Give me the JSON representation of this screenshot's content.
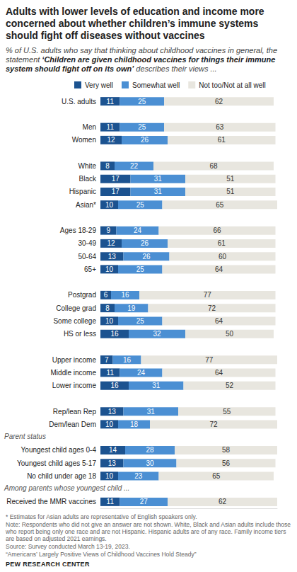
{
  "chart_data": {
    "type": "bar",
    "orientation": "horizontal",
    "stacked": true,
    "data_labels": true,
    "tick_labels": "y",
    "grid": false,
    "legend": "top",
    "title": "Adults with lower levels of education and income more concerned about whether children’s immune systems should fight off diseases without vaccines",
    "subtitle": "% of U.S. adults who say that thinking about childhood vaccines in general, the statement ‘Children are given childhood vaccines for things their immune system should fight off on its own’ describes their views ...",
    "categories": [
      "U.S. adults",
      null,
      "Men",
      "Women",
      null,
      "White",
      "Black",
      "Hispanic",
      "Asian*",
      null,
      "Ages 18-29",
      "30-49",
      "50-64",
      "65+",
      null,
      "Postgrad",
      "College grad",
      "Some college",
      "HS or less",
      null,
      "Upper income",
      "Middle income",
      "Lower income",
      null,
      "Rep/lean Rep",
      "Dem/lean Dem",
      "Parent status",
      "Youngest child ages 0-4",
      "Youngest child ages 5-17",
      "No child under age 18",
      "Among parents whose youngest child ...",
      "Received the MMR vaccines"
    ],
    "series": [
      {
        "name": "Very well",
        "color": "#1c5390",
        "values": [
          11,
          null,
          11,
          12,
          null,
          8,
          17,
          17,
          10,
          null,
          9,
          12,
          13,
          10,
          null,
          6,
          8,
          10,
          16,
          null,
          7,
          11,
          16,
          null,
          13,
          10,
          null,
          14,
          13,
          10,
          null,
          11
        ]
      },
      {
        "name": "Somewhat well",
        "color": "#4b8fd3",
        "values": [
          25,
          null,
          25,
          26,
          null,
          22,
          31,
          31,
          25,
          null,
          24,
          26,
          26,
          25,
          null,
          16,
          19,
          25,
          32,
          null,
          16,
          24,
          31,
          null,
          31,
          18,
          null,
          28,
          30,
          23,
          null,
          27
        ]
      },
      {
        "name": "Not too/Not at all well",
        "color": "#e8e6df",
        "values": [
          62,
          null,
          63,
          61,
          null,
          68,
          51,
          51,
          65,
          null,
          66,
          61,
          60,
          64,
          null,
          77,
          72,
          64,
          50,
          null,
          77,
          64,
          52,
          null,
          55,
          72,
          null,
          58,
          56,
          65,
          null,
          62
        ]
      }
    ],
    "xlim": [
      0,
      100
    ],
    "notes": [
      "* Estimates for Asian adults are representative of English speakers only.",
      "Note: Respondents who did not give an answer are not shown. White, Black and Asian adults include those who report being only one race and are not Hispanic. Hispanic adults are of any race. Family income tiers are based on adjusted 2021 earnings.",
      "Source: Survey conducted March 13-19, 2023.",
      "“Americans’ Largely Positive Views of Childhood Vaccines Hold Steady”"
    ],
    "credit": "PEW RESEARCH CENTER"
  }
}
